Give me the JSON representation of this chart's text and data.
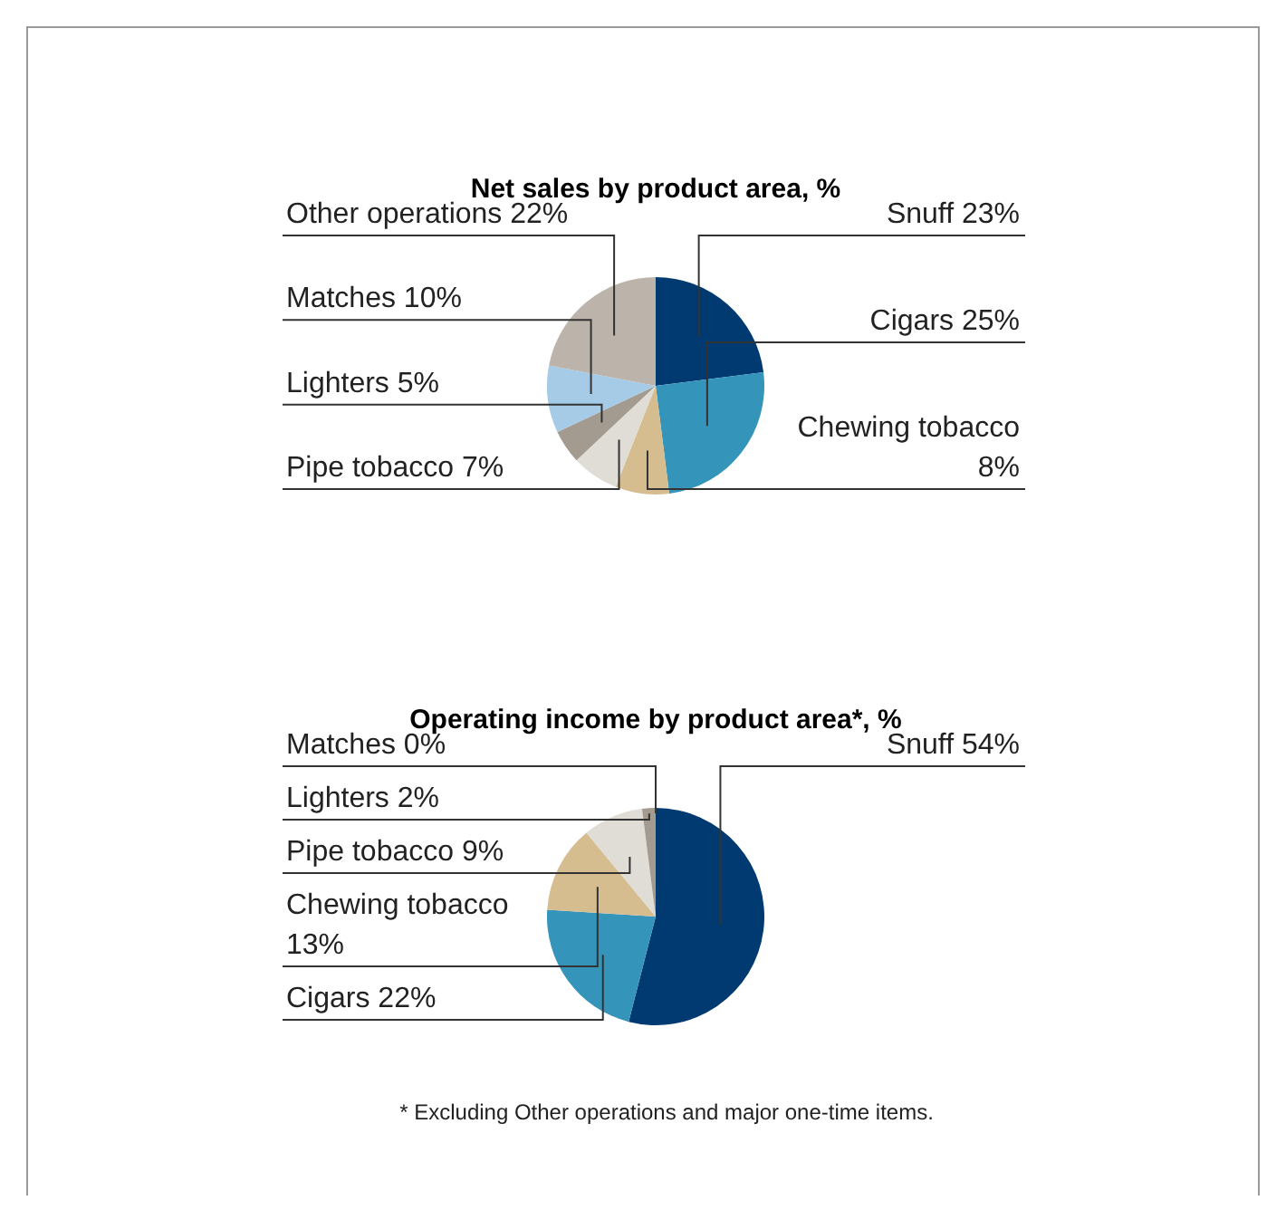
{
  "chart_data": [
    {
      "type": "pie",
      "title": "Net sales by product area, %",
      "categories": [
        "Snuff",
        "Cigars",
        "Chewing tobacco",
        "Pipe tobacco",
        "Lighters",
        "Matches",
        "Other operations"
      ],
      "values": [
        23,
        25,
        8,
        7,
        5,
        10,
        22
      ],
      "value_labels": [
        "23%",
        "25%",
        "8%",
        "7%",
        "5%",
        "10%",
        "22%"
      ],
      "colors": [
        "#003a70",
        "#3494ba",
        "#d6bd8f",
        "#e0dcd6",
        "#a39a90",
        "#a6cbe6",
        "#bcb3aa"
      ]
    },
    {
      "type": "pie",
      "title": "Operating income by product area*, %",
      "categories": [
        "Snuff",
        "Cigars",
        "Chewing tobacco",
        "Pipe tobacco",
        "Lighters",
        "Matches"
      ],
      "values": [
        54,
        22,
        13,
        9,
        2,
        0
      ],
      "value_labels": [
        "54%",
        "22%",
        "13%",
        "9%",
        "2%",
        "0%"
      ],
      "colors": [
        "#003a70",
        "#3494ba",
        "#d6bd8f",
        "#e0dcd6",
        "#a39a90",
        "#a6cbe6"
      ],
      "annotations": [
        "* Excluding Other operations and major one-time items."
      ]
    }
  ]
}
